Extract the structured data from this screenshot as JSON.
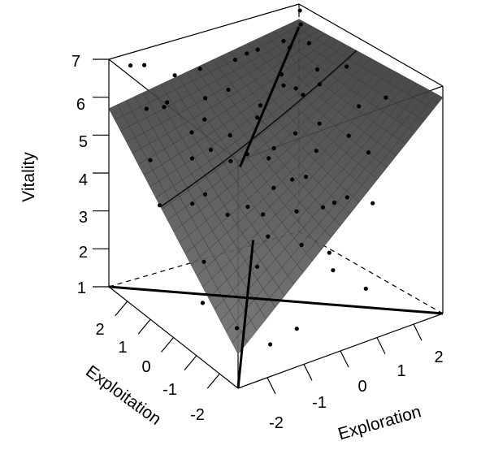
{
  "chart_data": {
    "type": "scatter",
    "subtype": "3d-response-surface",
    "zlabel": "Vitality",
    "xlabel": "Exploration",
    "ylabel": "Exploitation",
    "xticks": [
      "-2",
      "-1",
      "0",
      "1",
      "2"
    ],
    "yticks": [
      "2",
      "1",
      "0",
      "-1",
      "-2"
    ],
    "zticks": [
      "7",
      "6",
      "5",
      "4",
      "3",
      "2",
      "1"
    ],
    "xlim": [
      -2.8,
      2.8
    ],
    "ylim": [
      -2.8,
      2.8
    ],
    "zlim": [
      1,
      7
    ],
    "surface_color": "#5a5a5a",
    "point_color": "#000000",
    "surface_corners": {
      "x_low_y_high": 5.7,
      "x_low_y_low": 1.9,
      "x_high_y_high": 6.6,
      "x_high_y_low": 6.7,
      "center": 4.6
    },
    "points": [
      [
        -2.1,
        2.3,
        6.9
      ],
      [
        -2.3,
        2.6,
        6.8
      ],
      [
        0.9,
        2.3,
        6.4
      ],
      [
        1.0,
        2.0,
        6.6
      ],
      [
        2.3,
        2.5,
        6.1
      ],
      [
        2.6,
        2.5,
        7.0
      ],
      [
        2.4,
        2.2,
        6.8
      ],
      [
        0.1,
        -2.4,
        4.7
      ],
      [
        -1.5,
        2.2,
        5.8
      ],
      [
        -0.9,
        1.5,
        5.5
      ],
      [
        -1.8,
        1.9,
        5.9
      ],
      [
        0.5,
        1.2,
        5.6
      ],
      [
        1.4,
        1.6,
        6.0
      ],
      [
        1.7,
        0.5,
        6.1
      ],
      [
        2.0,
        1.0,
        6.2
      ],
      [
        -0.5,
        0.3,
        5.0
      ],
      [
        -1.2,
        0.8,
        5.1
      ],
      [
        -0.3,
        -0.5,
        4.4
      ],
      [
        0.4,
        -0.8,
        4.6
      ],
      [
        0.8,
        0.2,
        5.2
      ],
      [
        1.2,
        -0.2,
        5.5
      ],
      [
        1.6,
        -0.8,
        5.3
      ],
      [
        0.2,
        0.9,
        5.5
      ],
      [
        -1.6,
        1.0,
        4.9
      ],
      [
        -2.0,
        0.4,
        4.1
      ],
      [
        -1.4,
        -0.2,
        3.9
      ],
      [
        -0.8,
        -1.0,
        3.5
      ],
      [
        -0.2,
        -1.5,
        3.3
      ],
      [
        0.3,
        -1.9,
        3.1
      ],
      [
        0.6,
        -1.2,
        3.9
      ],
      [
        1.0,
        -1.6,
        4.2
      ],
      [
        1.5,
        -1.9,
        4.0
      ],
      [
        2.1,
        -0.5,
        5.8
      ],
      [
        2.4,
        0.4,
        6.4
      ],
      [
        -1.0,
        2.6,
        6.2
      ],
      [
        -0.4,
        2.4,
        6.3
      ],
      [
        0.0,
        1.8,
        5.9
      ],
      [
        -2.4,
        1.6,
        4.8
      ],
      [
        -1.9,
        2.5,
        5.6
      ],
      [
        0.7,
        2.5,
        6.2
      ],
      [
        1.9,
        2.2,
        6.5
      ],
      [
        1.1,
        1.1,
        6.0
      ],
      [
        -0.7,
        0.7,
        4.7
      ],
      [
        -0.1,
        0.0,
        4.9
      ],
      [
        0.9,
        -0.5,
        5.0
      ],
      [
        -1.1,
        -0.6,
        4.2
      ],
      [
        -2.2,
        -0.4,
        3.0
      ],
      [
        -2.6,
        0.9,
        4.0
      ],
      [
        -2.0,
        -1.5,
        1.7
      ],
      [
        -1.4,
        -2.0,
        1.3
      ],
      [
        0.9,
        -2.5,
        2.2
      ],
      [
        -0.8,
        -2.2,
        1.6
      ],
      [
        0.0,
        -1.0,
        3.9
      ],
      [
        1.3,
        0.6,
        5.9
      ],
      [
        2.2,
        1.6,
        6.6
      ],
      [
        -0.6,
        1.9,
        5.8
      ],
      [
        -1.7,
        0.3,
        4.3
      ],
      [
        -1.2,
        1.6,
        5.2
      ],
      [
        0.4,
        0.5,
        4.8
      ],
      [
        1.8,
        -1.3,
        5.0
      ],
      [
        2.5,
        -1.0,
        6.1
      ],
      [
        -2.5,
        -0.8,
        2.2
      ],
      [
        -1.3,
        -1.3,
        3.0
      ],
      [
        0.5,
        -0.1,
        4.2
      ],
      [
        -0.3,
        1.3,
        5.0
      ],
      [
        1.6,
        1.3,
        5.7
      ],
      [
        0.2,
        -2.2,
        2.8
      ],
      [
        -0.4,
        -0.2,
        3.6
      ]
    ]
  }
}
